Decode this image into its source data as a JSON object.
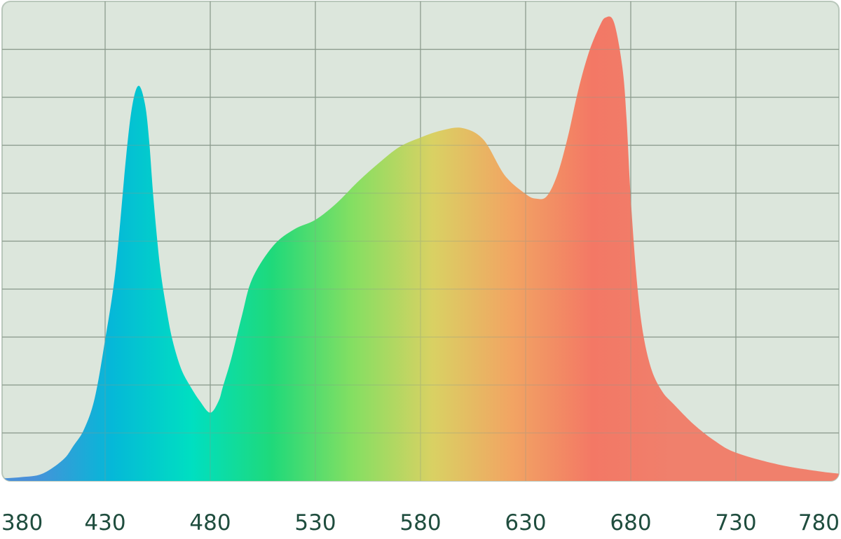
{
  "chart_data": {
    "type": "area",
    "title": "",
    "xlabel": "",
    "ylabel": "",
    "xlim": [
      380,
      780
    ],
    "ylim": [
      0,
      1
    ],
    "x_ticks": [
      380,
      430,
      480,
      530,
      580,
      630,
      680,
      730,
      780
    ],
    "grid": true,
    "grid_rows": 10,
    "legend": "none",
    "colors": {
      "plot_background": "#dce6dc",
      "grid": "#8a9a8c",
      "tick_label": "#1f4d3e",
      "gradient": [
        "#4a90d9",
        "#05b8d8",
        "#00dfc1",
        "#1fd97a",
        "#84df62",
        "#d9d163",
        "#f2a463",
        "#f37865",
        "#f0806c"
      ]
    },
    "series": [
      {
        "x": [
          380,
          390,
          400,
          410,
          415,
          420,
          425,
          430,
          435,
          440,
          443,
          446,
          449,
          451,
          453,
          456,
          459,
          462,
          466,
          470,
          475,
          480,
          484,
          486,
          490,
          495,
          500,
          510,
          520,
          530,
          540,
          550,
          560,
          570,
          580,
          590,
          600,
          610,
          620,
          630,
          635,
          640,
          645,
          650,
          655,
          660,
          665,
          668,
          672,
          676,
          678,
          680,
          683,
          686,
          690,
          695,
          700,
          710,
          720,
          730,
          750,
          770,
          780
        ],
        "y": [
          0.005,
          0.008,
          0.015,
          0.045,
          0.075,
          0.11,
          0.175,
          0.3,
          0.45,
          0.69,
          0.8,
          0.84,
          0.8,
          0.72,
          0.6,
          0.46,
          0.37,
          0.3,
          0.24,
          0.205,
          0.17,
          0.145,
          0.17,
          0.2,
          0.26,
          0.35,
          0.43,
          0.5,
          0.535,
          0.555,
          0.59,
          0.635,
          0.675,
          0.71,
          0.73,
          0.745,
          0.75,
          0.725,
          0.65,
          0.61,
          0.6,
          0.605,
          0.65,
          0.73,
          0.83,
          0.91,
          0.965,
          0.985,
          0.975,
          0.88,
          0.77,
          0.6,
          0.42,
          0.31,
          0.235,
          0.19,
          0.165,
          0.12,
          0.085,
          0.06,
          0.035,
          0.02,
          0.015
        ]
      }
    ]
  }
}
